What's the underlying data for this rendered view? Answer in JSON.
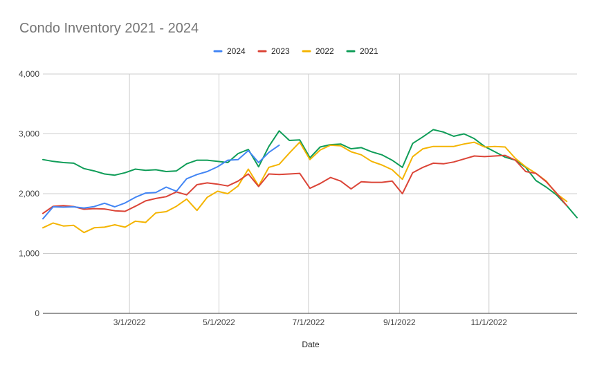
{
  "chart_data": {
    "type": "line",
    "title": "Condo Inventory 2021 - 2024",
    "xlabel": "Date",
    "ylabel": "",
    "ylim": [
      0,
      4000
    ],
    "yticks": [
      0,
      1000,
      2000,
      3000,
      4000
    ],
    "ytick_labels": [
      "0",
      "1,000",
      "2,000",
      "3,000",
      "4,000"
    ],
    "xtick_labels": [
      "3/1/2022",
      "5/1/2022",
      "7/1/2022",
      "9/1/2022",
      "11/1/2022"
    ],
    "x_domain": [
      "2022-01-01",
      "2022-12-31"
    ],
    "xtick_dates": [
      "2022-03-01",
      "2022-05-01",
      "2022-07-01",
      "2022-09-01",
      "2022-11-01"
    ],
    "legend_position": "top",
    "grid": true,
    "series": [
      {
        "name": "2024",
        "color": "#4285f4",
        "points": [
          [
            "2022-01-01",
            1580
          ],
          [
            "2022-01-08",
            1780
          ],
          [
            "2022-01-15",
            1775
          ],
          [
            "2022-01-22",
            1780
          ],
          [
            "2022-01-29",
            1760
          ],
          [
            "2022-02-05",
            1785
          ],
          [
            "2022-02-12",
            1840
          ],
          [
            "2022-02-19",
            1780
          ],
          [
            "2022-02-26",
            1845
          ],
          [
            "2022-03-05",
            1940
          ],
          [
            "2022-03-12",
            2010
          ],
          [
            "2022-03-19",
            2020
          ],
          [
            "2022-03-26",
            2110
          ],
          [
            "2022-04-02",
            2040
          ],
          [
            "2022-04-09",
            2250
          ],
          [
            "2022-04-16",
            2320
          ],
          [
            "2022-04-23",
            2370
          ],
          [
            "2022-04-30",
            2450
          ],
          [
            "2022-05-07",
            2560
          ],
          [
            "2022-05-14",
            2570
          ],
          [
            "2022-05-21",
            2720
          ],
          [
            "2022-05-28",
            2520
          ],
          [
            "2022-06-04",
            2690
          ],
          [
            "2022-06-11",
            2810
          ]
        ]
      },
      {
        "name": "2023",
        "color": "#db4437",
        "points": [
          [
            "2022-01-01",
            1670
          ],
          [
            "2022-01-08",
            1790
          ],
          [
            "2022-01-15",
            1800
          ],
          [
            "2022-01-22",
            1785
          ],
          [
            "2022-01-29",
            1740
          ],
          [
            "2022-02-05",
            1750
          ],
          [
            "2022-02-12",
            1745
          ],
          [
            "2022-02-19",
            1715
          ],
          [
            "2022-02-26",
            1705
          ],
          [
            "2022-03-05",
            1790
          ],
          [
            "2022-03-12",
            1880
          ],
          [
            "2022-03-19",
            1920
          ],
          [
            "2022-03-26",
            1950
          ],
          [
            "2022-04-02",
            2030
          ],
          [
            "2022-04-09",
            1980
          ],
          [
            "2022-04-16",
            2150
          ],
          [
            "2022-04-23",
            2180
          ],
          [
            "2022-04-30",
            2160
          ],
          [
            "2022-05-07",
            2130
          ],
          [
            "2022-05-14",
            2210
          ],
          [
            "2022-05-21",
            2330
          ],
          [
            "2022-05-28",
            2120
          ],
          [
            "2022-06-04",
            2330
          ],
          [
            "2022-06-11",
            2320
          ],
          [
            "2022-06-18",
            2330
          ],
          [
            "2022-06-25",
            2340
          ],
          [
            "2022-07-02",
            2090
          ],
          [
            "2022-07-09",
            2170
          ],
          [
            "2022-07-16",
            2270
          ],
          [
            "2022-07-23",
            2210
          ],
          [
            "2022-07-30",
            2080
          ],
          [
            "2022-08-06",
            2200
          ],
          [
            "2022-08-13",
            2190
          ],
          [
            "2022-08-20",
            2190
          ],
          [
            "2022-08-27",
            2210
          ],
          [
            "2022-09-03",
            2000
          ],
          [
            "2022-09-10",
            2350
          ],
          [
            "2022-09-17",
            2440
          ],
          [
            "2022-09-24",
            2510
          ],
          [
            "2022-10-01",
            2500
          ],
          [
            "2022-10-08",
            2530
          ],
          [
            "2022-10-15",
            2580
          ],
          [
            "2022-10-22",
            2630
          ],
          [
            "2022-10-29",
            2620
          ],
          [
            "2022-11-05",
            2630
          ],
          [
            "2022-11-12",
            2640
          ],
          [
            "2022-11-19",
            2560
          ],
          [
            "2022-11-26",
            2370
          ],
          [
            "2022-12-03",
            2340
          ],
          [
            "2022-12-10",
            2200
          ],
          [
            "2022-12-17",
            2010
          ],
          [
            "2022-12-24",
            1800
          ]
        ]
      },
      {
        "name": "2022",
        "color": "#f4b400",
        "points": [
          [
            "2022-01-01",
            1430
          ],
          [
            "2022-01-08",
            1510
          ],
          [
            "2022-01-15",
            1460
          ],
          [
            "2022-01-22",
            1470
          ],
          [
            "2022-01-29",
            1350
          ],
          [
            "2022-02-05",
            1430
          ],
          [
            "2022-02-12",
            1440
          ],
          [
            "2022-02-19",
            1480
          ],
          [
            "2022-02-26",
            1440
          ],
          [
            "2022-03-05",
            1540
          ],
          [
            "2022-03-12",
            1520
          ],
          [
            "2022-03-19",
            1680
          ],
          [
            "2022-03-26",
            1700
          ],
          [
            "2022-04-02",
            1790
          ],
          [
            "2022-04-09",
            1910
          ],
          [
            "2022-04-16",
            1720
          ],
          [
            "2022-04-23",
            1940
          ],
          [
            "2022-04-30",
            2040
          ],
          [
            "2022-05-07",
            2000
          ],
          [
            "2022-05-14",
            2130
          ],
          [
            "2022-05-21",
            2410
          ],
          [
            "2022-05-28",
            2130
          ],
          [
            "2022-06-04",
            2440
          ],
          [
            "2022-06-11",
            2490
          ],
          [
            "2022-06-18",
            2680
          ],
          [
            "2022-06-25",
            2860
          ],
          [
            "2022-07-02",
            2570
          ],
          [
            "2022-07-09",
            2730
          ],
          [
            "2022-07-16",
            2810
          ],
          [
            "2022-07-23",
            2800
          ],
          [
            "2022-07-30",
            2700
          ],
          [
            "2022-08-06",
            2650
          ],
          [
            "2022-08-13",
            2540
          ],
          [
            "2022-08-20",
            2480
          ],
          [
            "2022-08-27",
            2400
          ],
          [
            "2022-09-03",
            2240
          ],
          [
            "2022-09-10",
            2620
          ],
          [
            "2022-09-17",
            2750
          ],
          [
            "2022-09-24",
            2790
          ],
          [
            "2022-10-01",
            2790
          ],
          [
            "2022-10-08",
            2790
          ],
          [
            "2022-10-15",
            2830
          ],
          [
            "2022-10-22",
            2860
          ],
          [
            "2022-10-29",
            2780
          ],
          [
            "2022-11-05",
            2790
          ],
          [
            "2022-11-12",
            2780
          ],
          [
            "2022-11-19",
            2590
          ],
          [
            "2022-11-26",
            2450
          ],
          [
            "2022-12-03",
            2340
          ],
          [
            "2022-12-10",
            2210
          ],
          [
            "2022-12-17",
            2000
          ],
          [
            "2022-12-24",
            1870
          ]
        ]
      },
      {
        "name": "2021",
        "color": "#0f9d58",
        "points": [
          [
            "2022-01-01",
            2570
          ],
          [
            "2022-01-08",
            2540
          ],
          [
            "2022-01-15",
            2520
          ],
          [
            "2022-01-22",
            2510
          ],
          [
            "2022-01-29",
            2420
          ],
          [
            "2022-02-05",
            2380
          ],
          [
            "2022-02-12",
            2330
          ],
          [
            "2022-02-19",
            2310
          ],
          [
            "2022-02-26",
            2350
          ],
          [
            "2022-03-05",
            2410
          ],
          [
            "2022-03-12",
            2390
          ],
          [
            "2022-03-19",
            2400
          ],
          [
            "2022-03-26",
            2370
          ],
          [
            "2022-04-02",
            2380
          ],
          [
            "2022-04-09",
            2500
          ],
          [
            "2022-04-16",
            2560
          ],
          [
            "2022-04-23",
            2560
          ],
          [
            "2022-04-30",
            2540
          ],
          [
            "2022-05-07",
            2520
          ],
          [
            "2022-05-14",
            2670
          ],
          [
            "2022-05-21",
            2740
          ],
          [
            "2022-05-28",
            2450
          ],
          [
            "2022-06-04",
            2790
          ],
          [
            "2022-06-11",
            3050
          ],
          [
            "2022-06-18",
            2890
          ],
          [
            "2022-06-25",
            2900
          ],
          [
            "2022-07-02",
            2600
          ],
          [
            "2022-07-09",
            2780
          ],
          [
            "2022-07-16",
            2820
          ],
          [
            "2022-07-23",
            2830
          ],
          [
            "2022-07-30",
            2750
          ],
          [
            "2022-08-06",
            2770
          ],
          [
            "2022-08-13",
            2700
          ],
          [
            "2022-08-20",
            2650
          ],
          [
            "2022-08-27",
            2560
          ],
          [
            "2022-09-03",
            2440
          ],
          [
            "2022-09-10",
            2840
          ],
          [
            "2022-09-17",
            2950
          ],
          [
            "2022-09-24",
            3070
          ],
          [
            "2022-10-01",
            3030
          ],
          [
            "2022-10-08",
            2960
          ],
          [
            "2022-10-15",
            3000
          ],
          [
            "2022-10-22",
            2920
          ],
          [
            "2022-10-29",
            2790
          ],
          [
            "2022-11-05",
            2700
          ],
          [
            "2022-11-12",
            2610
          ],
          [
            "2022-11-19",
            2560
          ],
          [
            "2022-11-26",
            2440
          ],
          [
            "2022-12-03",
            2220
          ],
          [
            "2022-12-10",
            2110
          ],
          [
            "2022-12-17",
            1980
          ],
          [
            "2022-12-24",
            1800
          ],
          [
            "2022-12-31",
            1600
          ]
        ]
      }
    ]
  }
}
